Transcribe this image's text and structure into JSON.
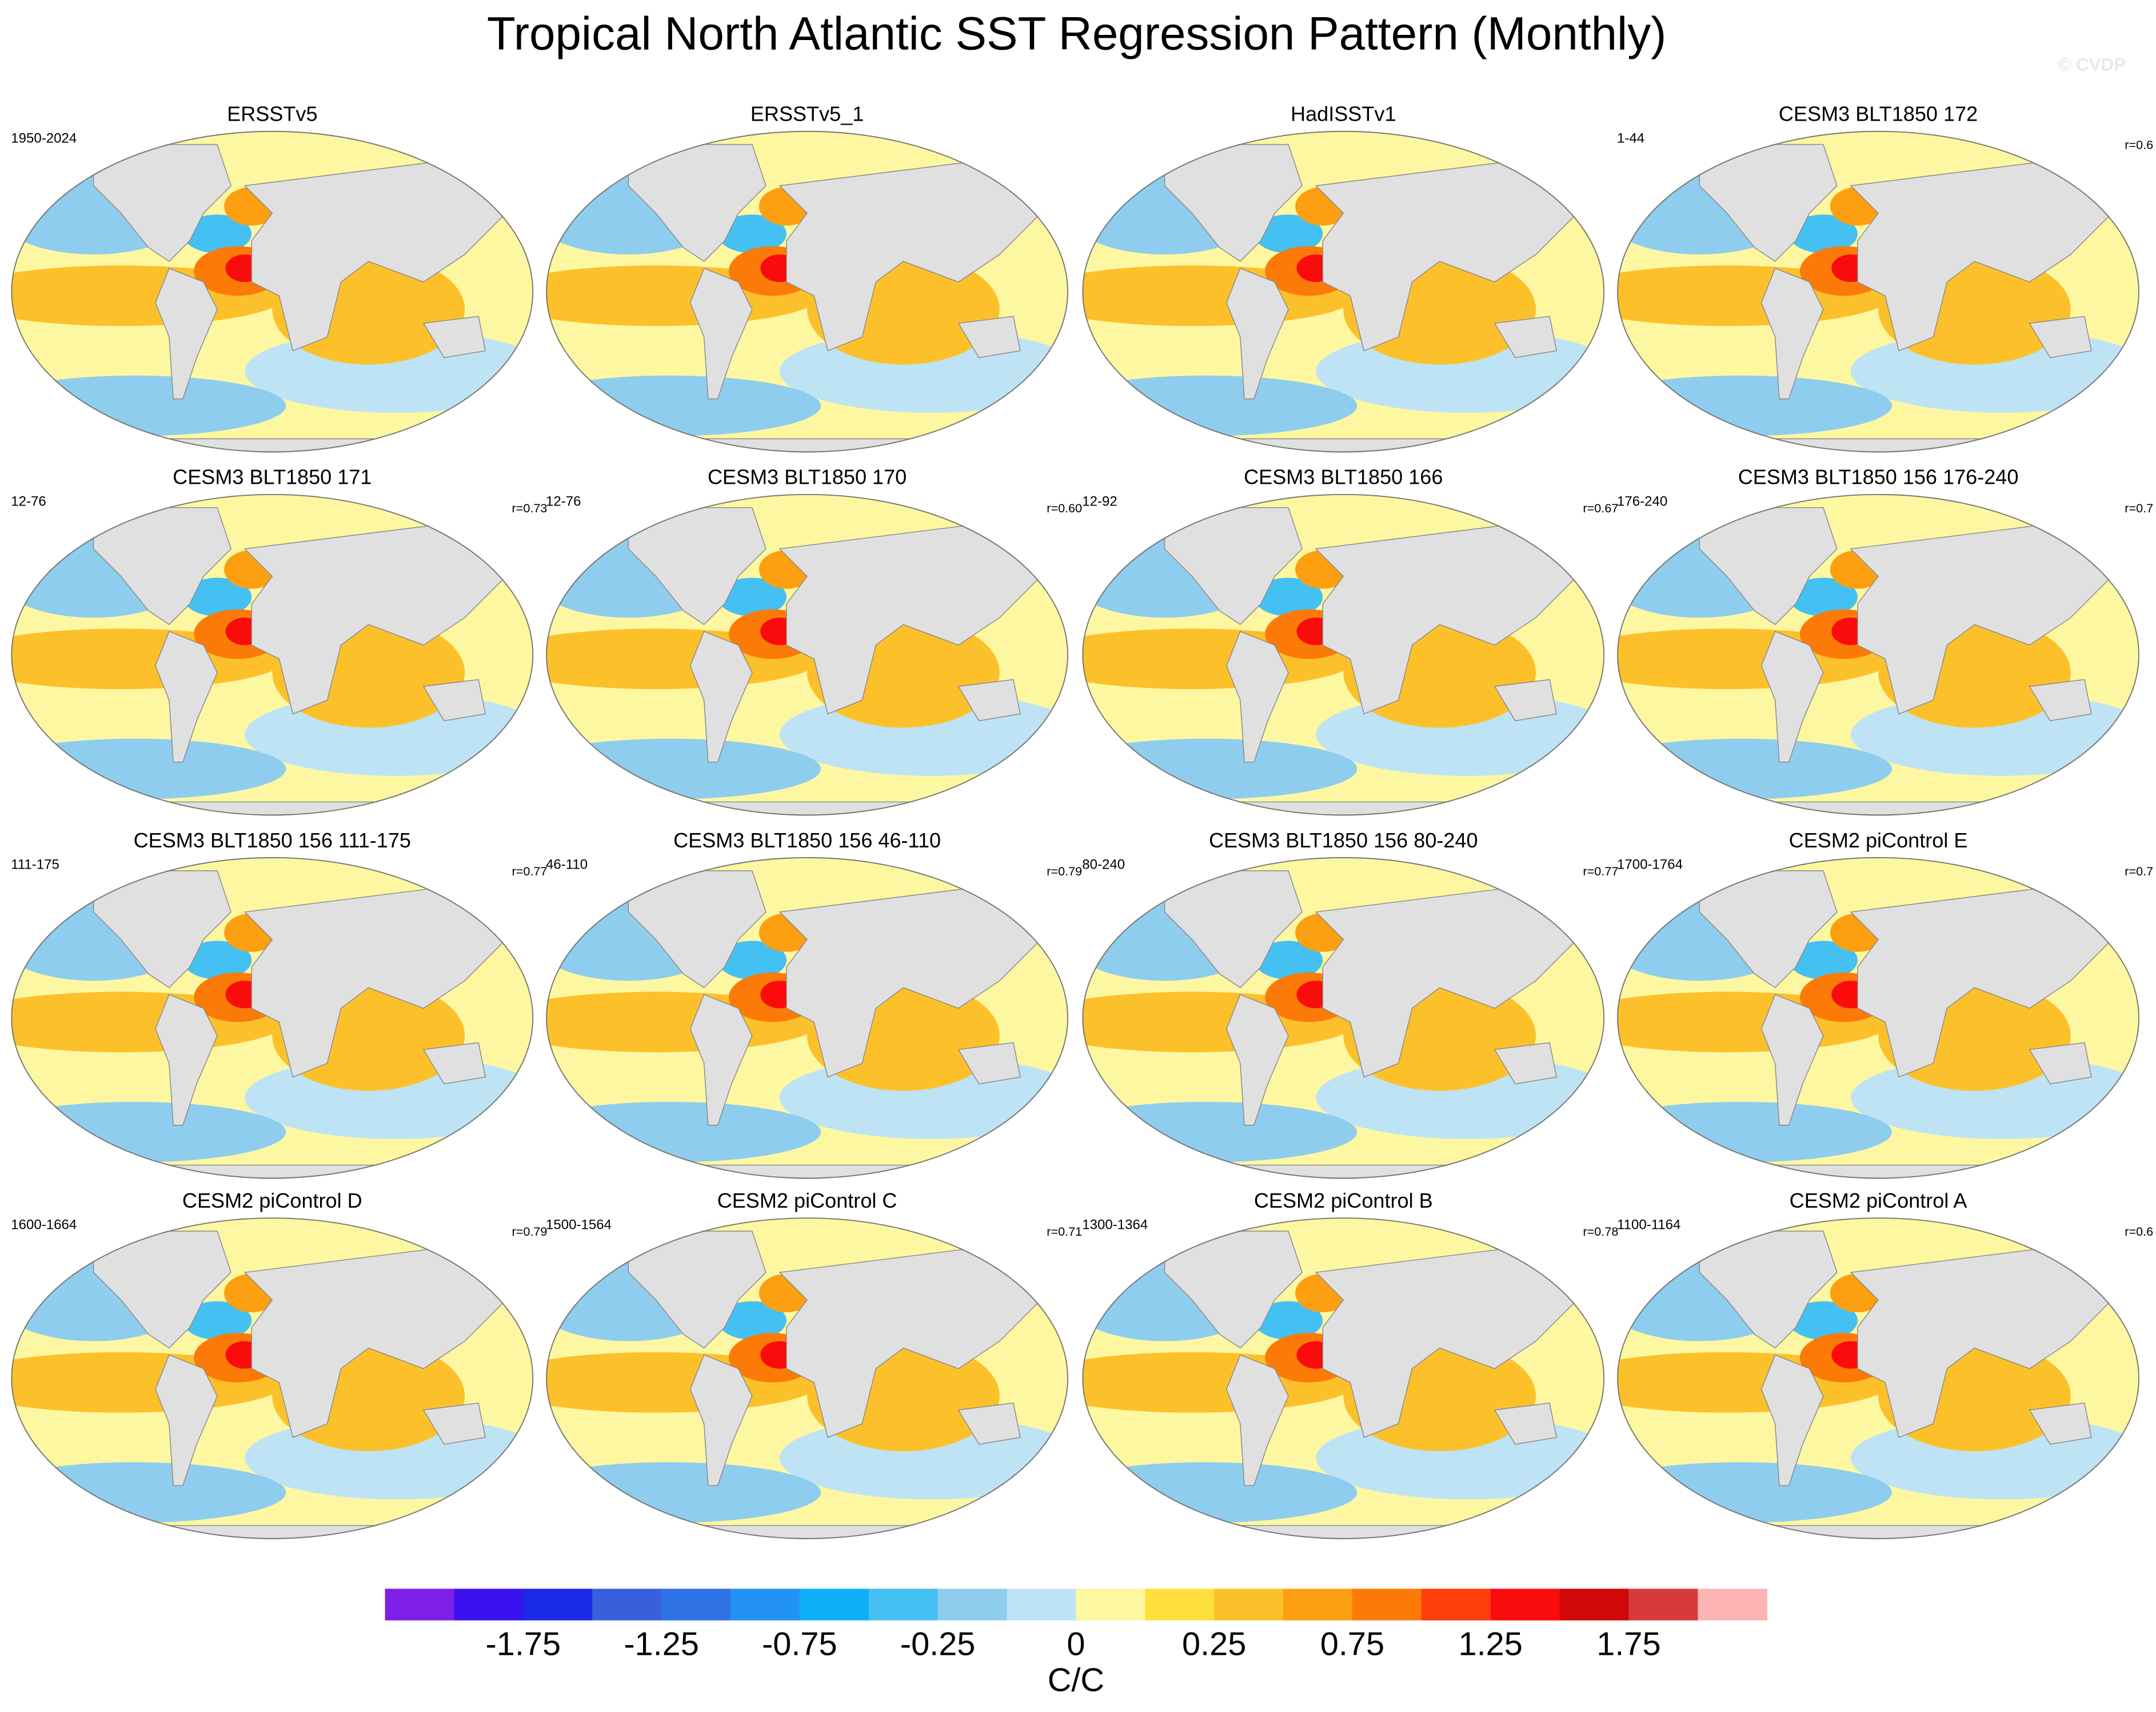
{
  "title": "Tropical North Atlantic SST Regression Pattern (Monthly)",
  "watermark": "© CVDP",
  "panels": [
    {
      "title": "ERSSTv5",
      "period": "1950-2024"
    },
    {
      "title": "ERSSTv5_1"
    },
    {
      "title": "HadISSTv1"
    },
    {
      "title": "CESM3 BLT1850 172",
      "period": "1-44",
      "r": "r=0.6"
    },
    {
      "title": "CESM3 BLT1850 171",
      "period": "12-76",
      "r": "r=0.73"
    },
    {
      "title": "CESM3 BLT1850 170",
      "period": "12-76",
      "r": "r=0.60"
    },
    {
      "title": "CESM3 BLT1850 166",
      "period": "12-92",
      "r": "r=0.67"
    },
    {
      "title": "CESM3 BLT1850 156 176-240",
      "period": "176-240",
      "r": "r=0.7"
    },
    {
      "title": "CESM3 BLT1850 156 111-175",
      "period": "111-175",
      "r": "r=0.77"
    },
    {
      "title": "CESM3 BLT1850 156 46-110",
      "period": "46-110",
      "r": "r=0.79"
    },
    {
      "title": "CESM3 BLT1850 156 80-240",
      "period": "80-240",
      "r": "r=0.77"
    },
    {
      "title": "CESM2 piControl E",
      "period": "1700-1764",
      "r": "r=0.7"
    },
    {
      "title": "CESM2 piControl D",
      "period": "1600-1664",
      "r": "r=0.79"
    },
    {
      "title": "CESM2 piControl C",
      "period": "1500-1564",
      "r": "r=0.71"
    },
    {
      "title": "CESM2 piControl B",
      "period": "1300-1364",
      "r": "r=0.78"
    },
    {
      "title": "CESM2 piControl A",
      "period": "1100-1164",
      "r": "r=0.6"
    }
  ],
  "colorbar": {
    "colors": [
      "#7e1fe8",
      "#3a12f0",
      "#1a2ae8",
      "#3a5fdc",
      "#2f72e6",
      "#2392f5",
      "#0fb0f5",
      "#44c0f2",
      "#8fcdee",
      "#bde3f5",
      "#fdf7a2",
      "#fde03c",
      "#fcc12a",
      "#fc9f10",
      "#fc7a08",
      "#fc3e0a",
      "#fa0c0c",
      "#d10808",
      "#d63a3a",
      "#fcb3b3"
    ],
    "ticks": [
      -1.75,
      -1.25,
      -0.75,
      -0.25,
      0,
      0.25,
      0.75,
      1.25,
      1.75
    ],
    "label": "C/C"
  }
}
